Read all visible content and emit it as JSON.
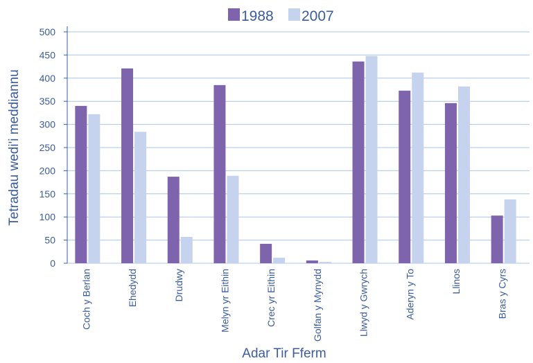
{
  "chart_data": {
    "type": "bar",
    "x_label": "Adar Tir Fferm",
    "y_label": "Tetradau wedi'i meddiannu",
    "categories": [
      "Coch y Berlan",
      "Ehedydd",
      "Drudwy",
      "Melyn yr Eithin",
      "Crec yr Eithin",
      "Golfan y Mynydd",
      "Llwyd y Gwrych",
      "Aderyn y To",
      "Llinos",
      "Bras y Cyrs"
    ],
    "series": [
      {
        "name": "1988",
        "color": "#7d64ad",
        "values": [
          340,
          421,
          187,
          385,
          42,
          6,
          436,
          373,
          346,
          103
        ]
      },
      {
        "name": "2007",
        "color": "#c6d3ee",
        "values": [
          322,
          284,
          57,
          189,
          12,
          3,
          448,
          412,
          382,
          138
        ]
      }
    ],
    "ylim": [
      0,
      500
    ],
    "yticks": [
      0,
      50,
      100,
      150,
      200,
      250,
      300,
      350,
      400,
      450,
      500
    ],
    "grid": true,
    "legend": "top"
  }
}
